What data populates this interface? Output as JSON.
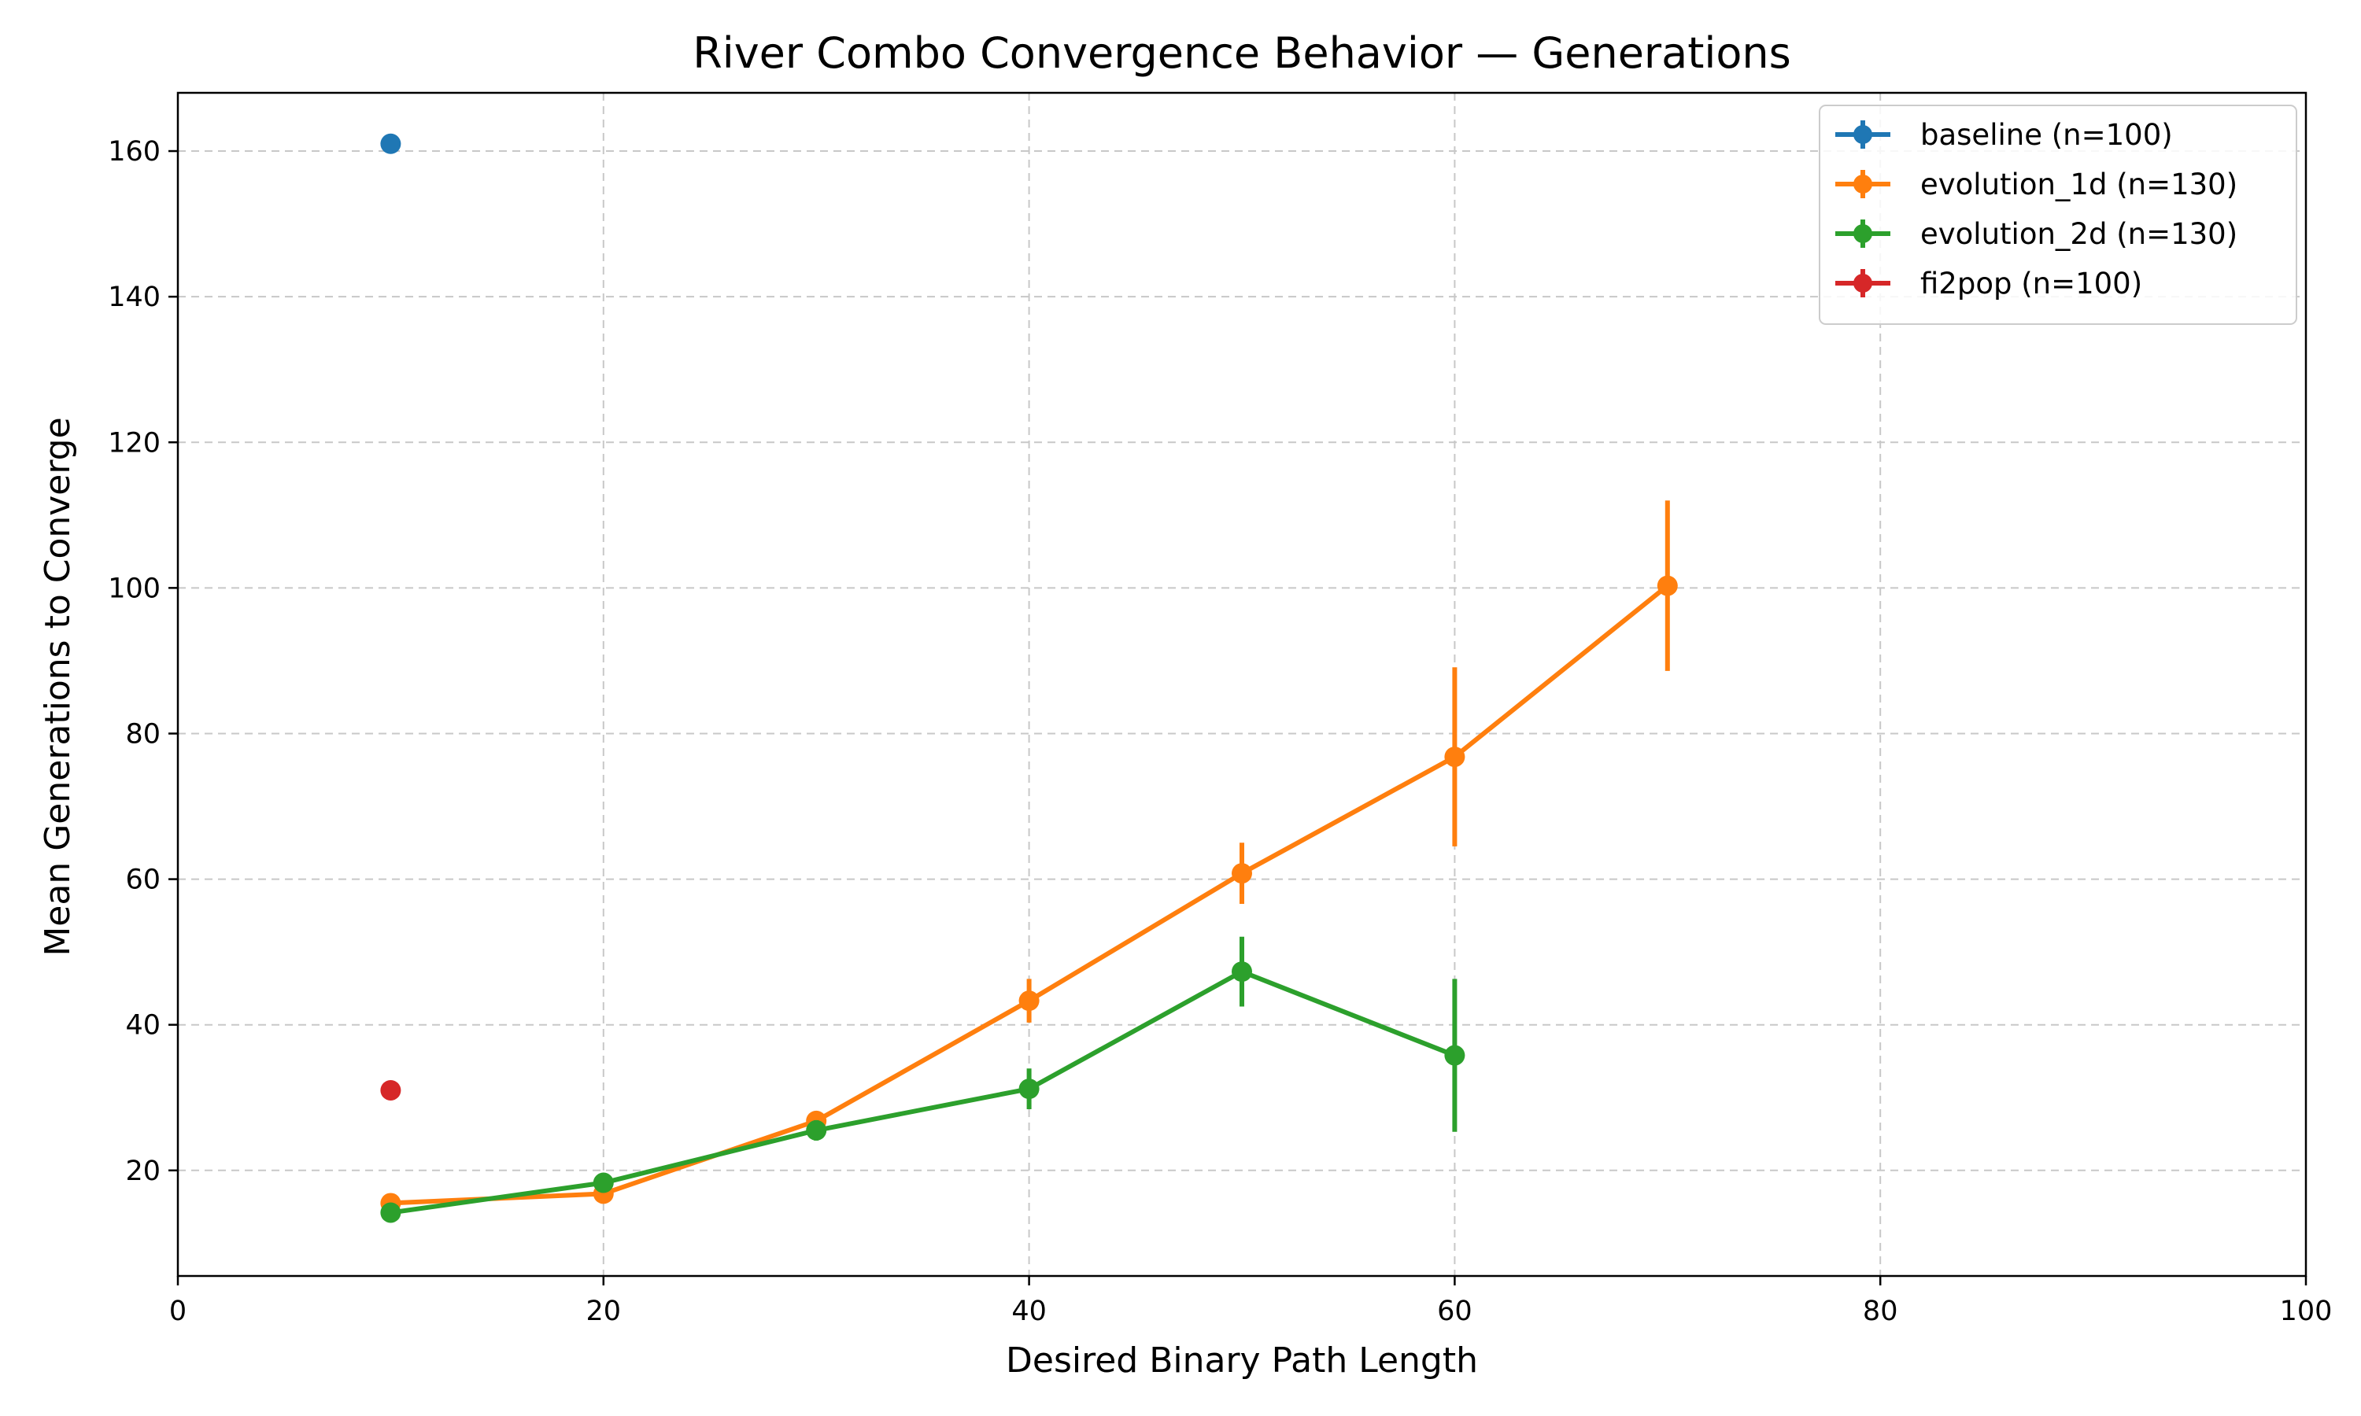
{
  "chart_data": {
    "type": "line",
    "title": "River Combo Convergence Behavior — Generations",
    "xlabel": "Desired Binary Path Length",
    "ylabel": "Mean Generations to Converge",
    "xlim": [
      0,
      100
    ],
    "ylim": [
      5.5,
      168
    ],
    "xticks": [
      0,
      20,
      40,
      60,
      80,
      100
    ],
    "yticks": [
      20,
      40,
      60,
      80,
      100,
      120,
      140,
      160
    ],
    "grid": true,
    "legend_position": "top-right",
    "series": [
      {
        "name": "baseline (n=100)",
        "color": "#1f77b4",
        "points": [
          {
            "x": 10,
            "y": 161,
            "err": 0
          }
        ]
      },
      {
        "name": "evolution_1d (n=130)",
        "color": "#ff7f0e",
        "points": [
          {
            "x": 10,
            "y": 15.5,
            "err": 0.6
          },
          {
            "x": 20,
            "y": 16.8,
            "err": 0.8
          },
          {
            "x": 30,
            "y": 26.8,
            "err": 1.2
          },
          {
            "x": 40,
            "y": 43.3,
            "err": 3.0
          },
          {
            "x": 50,
            "y": 60.8,
            "err": 4.2
          },
          {
            "x": 60,
            "y": 76.8,
            "err": 12.3
          },
          {
            "x": 70,
            "y": 100.3,
            "err": 11.7
          }
        ]
      },
      {
        "name": "evolution_2d (n=130)",
        "color": "#2ca02c",
        "points": [
          {
            "x": 10,
            "y": 14.2,
            "err": 0.6
          },
          {
            "x": 20,
            "y": 18.3,
            "err": 0.9
          },
          {
            "x": 30,
            "y": 25.5,
            "err": 1.4
          },
          {
            "x": 40,
            "y": 31.2,
            "err": 2.8
          },
          {
            "x": 50,
            "y": 47.3,
            "err": 4.8
          },
          {
            "x": 60,
            "y": 35.8,
            "err": 10.5
          }
        ]
      },
      {
        "name": "fi2pop (n=100)",
        "color": "#d62728",
        "points": [
          {
            "x": 10,
            "y": 31,
            "err": 0
          }
        ]
      }
    ]
  }
}
